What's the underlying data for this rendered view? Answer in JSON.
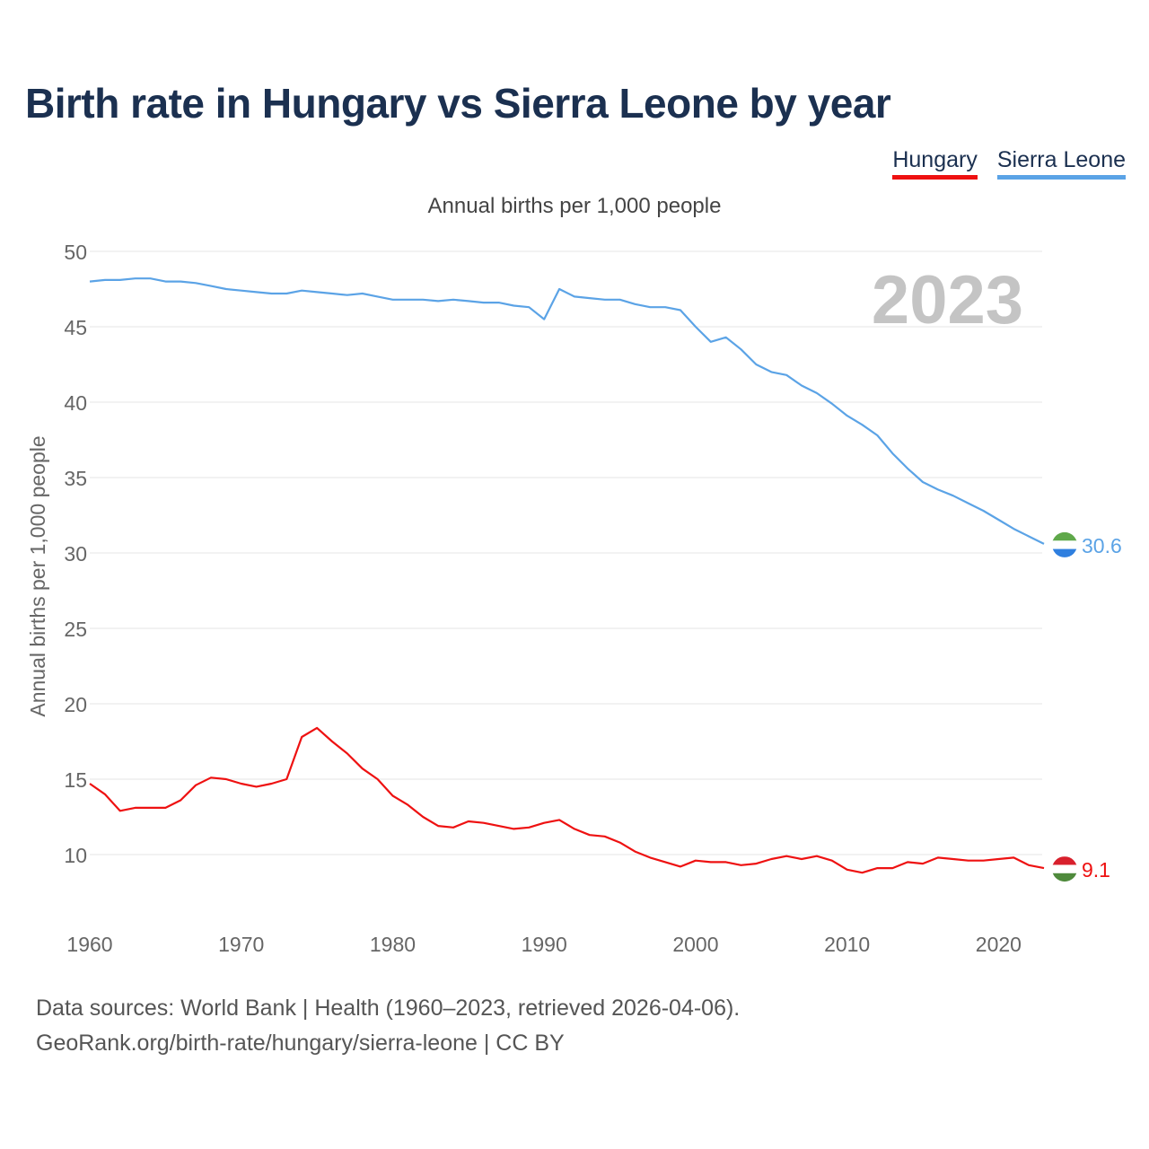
{
  "title": "Birth rate in Hungary vs Sierra Leone by year",
  "legend": {
    "hungary": "Hungary",
    "sierra_leone": "Sierra Leone"
  },
  "subtitle": "Annual births per 1,000 people",
  "footer": {
    "line1": "Data sources: World Bank | Health (1960–2023, retrieved 2026-04-06).",
    "line2": "GeoRank.org/birth-rate/hungary/sierra-leone | CC BY"
  },
  "colors": {
    "hungary": "#ee1111",
    "sierra_leone": "#5ba3e6",
    "year_watermark": "#c4c4c4",
    "grid": "#e6e6e6",
    "tick": "#666666"
  },
  "chart_data": {
    "type": "line",
    "title": "Birth rate in Hungary vs Sierra Leone by year",
    "xlabel": "",
    "ylabel": "Annual births per 1,000 people",
    "xlim": [
      1960,
      2023
    ],
    "ylim": [
      5,
      50
    ],
    "y_ticks": [
      10,
      15,
      20,
      25,
      30,
      35,
      40,
      45,
      50
    ],
    "x_ticks": [
      1960,
      1970,
      1980,
      1990,
      2000,
      2010,
      2020
    ],
    "grid": true,
    "year_label": "2023",
    "x": [
      1960,
      1961,
      1962,
      1963,
      1964,
      1965,
      1966,
      1967,
      1968,
      1969,
      1970,
      1971,
      1972,
      1973,
      1974,
      1975,
      1976,
      1977,
      1978,
      1979,
      1980,
      1981,
      1982,
      1983,
      1984,
      1985,
      1986,
      1987,
      1988,
      1989,
      1990,
      1991,
      1992,
      1993,
      1994,
      1995,
      1996,
      1997,
      1998,
      1999,
      2000,
      2001,
      2002,
      2003,
      2004,
      2005,
      2006,
      2007,
      2008,
      2009,
      2010,
      2011,
      2012,
      2013,
      2014,
      2015,
      2016,
      2017,
      2018,
      2019,
      2020,
      2021,
      2022,
      2023
    ],
    "series": [
      {
        "name": "Hungary",
        "flag": "hungary-flag",
        "end_label": "9.1",
        "values": [
          14.7,
          14.0,
          12.9,
          13.1,
          13.1,
          13.1,
          13.6,
          14.6,
          15.1,
          15.0,
          14.7,
          14.5,
          14.7,
          15.0,
          17.8,
          18.4,
          17.5,
          16.7,
          15.7,
          15.0,
          13.9,
          13.3,
          12.5,
          11.9,
          11.8,
          12.2,
          12.1,
          11.9,
          11.7,
          11.8,
          12.1,
          12.3,
          11.7,
          11.3,
          11.2,
          10.8,
          10.2,
          9.8,
          9.5,
          9.2,
          9.6,
          9.5,
          9.5,
          9.3,
          9.4,
          9.7,
          9.9,
          9.7,
          9.9,
          9.6,
          9.0,
          8.8,
          9.1,
          9.1,
          9.5,
          9.4,
          9.8,
          9.7,
          9.6,
          9.6,
          9.7,
          9.8,
          9.3,
          9.1
        ]
      },
      {
        "name": "Sierra Leone",
        "flag": "sierra-leone-flag",
        "end_label": "30.6",
        "values": [
          48.0,
          48.1,
          48.1,
          48.2,
          48.2,
          48.0,
          48.0,
          47.9,
          47.7,
          47.5,
          47.4,
          47.3,
          47.2,
          47.2,
          47.4,
          47.3,
          47.2,
          47.1,
          47.2,
          47.0,
          46.8,
          46.8,
          46.8,
          46.7,
          46.8,
          46.7,
          46.6,
          46.6,
          46.4,
          46.3,
          45.5,
          47.5,
          47.0,
          46.9,
          46.8,
          46.8,
          46.5,
          46.3,
          46.3,
          46.1,
          45.0,
          44.0,
          44.3,
          43.5,
          42.5,
          42.0,
          41.8,
          41.1,
          40.6,
          39.9,
          39.1,
          38.5,
          37.8,
          36.6,
          35.6,
          34.7,
          34.2,
          33.8,
          33.3,
          32.8,
          32.2,
          31.6,
          31.1,
          30.6
        ]
      }
    ]
  }
}
